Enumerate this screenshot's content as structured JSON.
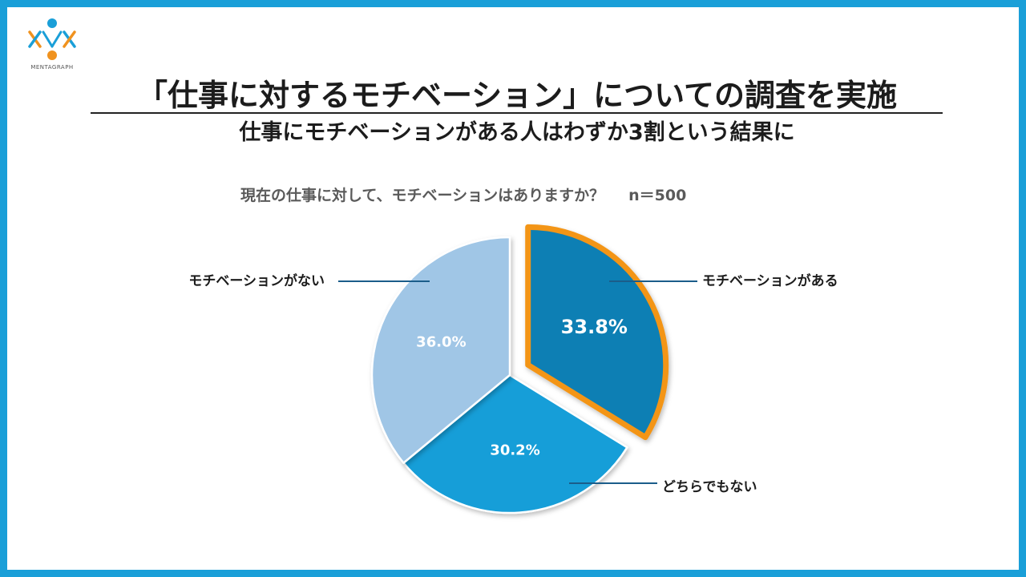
{
  "logo": {
    "text": "MENTAGRAPH",
    "colors": {
      "blue": "#1a9fd8",
      "orange": "#f0921e"
    }
  },
  "header": {
    "title": "「仕事に対するモチベーション」についての調査を実施",
    "subtitle": "仕事にモチベーションがある人はわずか3割という結果に"
  },
  "chart_data": {
    "type": "pie",
    "title": "現在の仕事に対して、モチベーションはありますか？",
    "sample_size": "n＝500",
    "start": "12 o'clock",
    "direction": "clockwise",
    "slices": [
      {
        "label": "モチベーションがある",
        "value": 33.8,
        "value_label": "33.8%",
        "color": "#0e7fb4",
        "highlight": true,
        "highlight_color": "#f39517",
        "exploded": true
      },
      {
        "label": "どちらでもない",
        "value": 30.2,
        "value_label": "30.2%",
        "color": "#139ed8",
        "highlight": false,
        "exploded": false
      },
      {
        "label": "モチベーションがない",
        "value": 36.0,
        "value_label": "36.0%",
        "color": "#a0c6e6",
        "highlight": false,
        "exploded": false
      }
    ]
  },
  "colors": {
    "frame": "#1a9fd8",
    "leader_line": "#1b5d8a",
    "label_text": "#1c1c1c",
    "value_text": "#ffffff"
  }
}
